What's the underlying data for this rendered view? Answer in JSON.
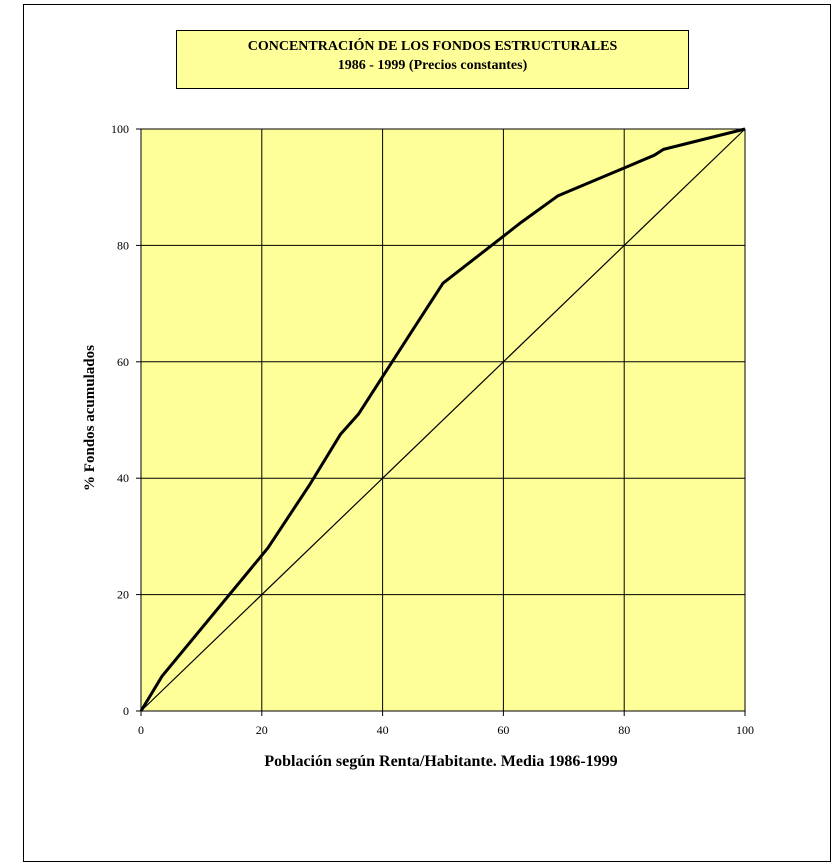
{
  "chart_data": {
    "type": "line",
    "title": "CONCENTRACIÓN DE LOS FONDOS ESTRUCTURALES",
    "subtitle": "1986 - 1999 (Precios constantes)",
    "xlabel": "Población según Renta/Habitante. Media 1986-1999",
    "ylabel": "% Fondos acumulados",
    "xlim": [
      0,
      100
    ],
    "ylim": [
      0,
      100
    ],
    "xticks": [
      "0",
      "20",
      "40",
      "60",
      "80",
      "100"
    ],
    "yticks": [
      "0",
      "20",
      "40",
      "60",
      "80",
      "100"
    ],
    "grid": true,
    "legend": "none",
    "colors": {
      "plot_background": "#ffff99",
      "line": "#000000",
      "grid": "#000000"
    },
    "series": [
      {
        "x": [
          0,
          3.5,
          21,
          28,
          33,
          36,
          45,
          50,
          63,
          69,
          85,
          86.5,
          100
        ],
        "y": [
          0,
          6,
          28,
          39,
          47.5,
          51,
          65.5,
          73.5,
          84,
          88.5,
          95.5,
          96.5,
          100
        ]
      },
      {
        "x": [
          0,
          100
        ],
        "y": [
          0,
          100
        ]
      }
    ]
  }
}
